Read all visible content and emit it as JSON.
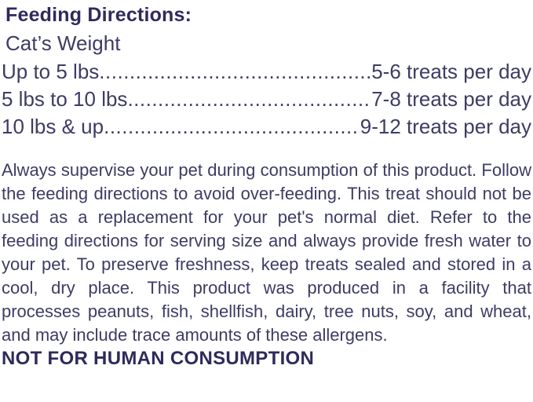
{
  "title": "Feeding Directions:",
  "weight_header": "Cat’s Weight",
  "feeding_table": {
    "rows": [
      {
        "weight": "Up to 5 lbs",
        "serving": "5-6 treats per day"
      },
      {
        "weight": "5 lbs to 10 lbs",
        "serving": "7-8 treats per day"
      },
      {
        "weight": "10 lbs & up",
        "serving": "9-12 treats per day"
      }
    ]
  },
  "disclaimer": "Always supervise your pet during consumption of this product. Follow the feeding directions to avoid over-feeding. This treat should not be used as a replacement for your pet's normal diet. Refer to the feeding directions for serving size and always provide fresh water to your pet. To preserve freshness, keep treats sealed and stored in a cool, dry place. This product was produced in a facility that processes peanuts, fish, shellfish, dairy, tree nuts, soy, and wheat, and may include trace amounts of these allergens.",
  "warning": "NOT FOR HUMAN CONSUMPTION",
  "colors": {
    "heading": "#2e2a5c",
    "body_text": "#3d3c64",
    "background": "#ffffff"
  }
}
